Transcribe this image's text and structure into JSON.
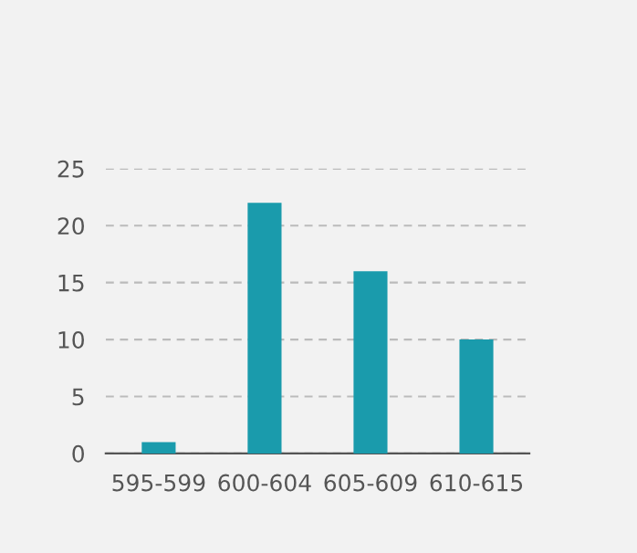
{
  "chart_data": {
    "type": "bar",
    "categories": [
      "595-599",
      "600-604",
      "605-609",
      "610-615"
    ],
    "values": [
      1,
      22,
      16,
      10
    ],
    "color": "#1a9bac",
    "ylim": [
      0,
      25
    ],
    "yticks": [
      0,
      5,
      10,
      15,
      20,
      25
    ],
    "grid": "y"
  }
}
